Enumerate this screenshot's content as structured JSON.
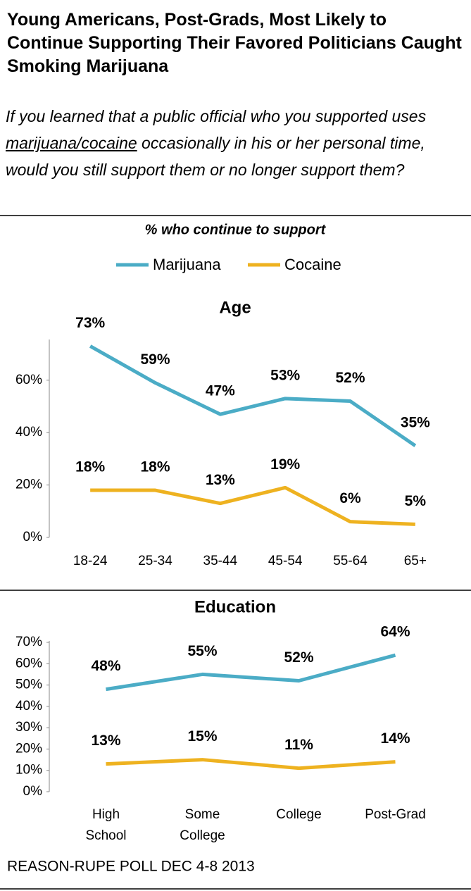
{
  "title": "Young Americans, Post-Grads, Most Likely to Continue Supporting Their Favored Politicians Caught Smoking Marijuana",
  "question": [
    "If you learned that a public official who you supported uses ",
    "marijuana/cocaine",
    " occasionally in his or her personal time, would you still support them or no longer support them?"
  ],
  "note": "% who continue to support",
  "source": "REASON-RUPE POLL DEC 4-8 2013",
  "chart_data": [
    {
      "type": "line",
      "title": "Age",
      "categories": [
        "18-24",
        "25-34",
        "35-44",
        "45-54",
        "55-64",
        "65+"
      ],
      "series": [
        {
          "name": "Marijuana",
          "color": "#4bacc6",
          "values": [
            73,
            59,
            47,
            53,
            52,
            35
          ],
          "value_labels": [
            "73%",
            "59%",
            "47%",
            "53%",
            "52%",
            "35%"
          ]
        },
        {
          "name": "Cocaine",
          "color": "#eeb220",
          "values": [
            18,
            18,
            13,
            19,
            6,
            5
          ],
          "value_labels": [
            "18%",
            "18%",
            "13%",
            "19%",
            "6%",
            "5%"
          ]
        }
      ],
      "ylim": [
        0,
        75
      ],
      "yticks": [
        {
          "value": 0,
          "label": "0%"
        },
        {
          "value": 20,
          "label": "20%"
        },
        {
          "value": 40,
          "label": "40%"
        },
        {
          "value": 60,
          "label": "60%"
        }
      ]
    },
    {
      "type": "line",
      "title": "Education",
      "categories": [
        "High School",
        "Some College",
        "College",
        "Post-Grad"
      ],
      "series": [
        {
          "color": "#4bacc6",
          "values": [
            48,
            55,
            52,
            64
          ],
          "value_labels": [
            "48%",
            "55%",
            "52%",
            "64%"
          ]
        },
        {
          "color": "#eeb220",
          "values": [
            13,
            15,
            11,
            14
          ],
          "value_labels": [
            "13%",
            "15%",
            "11%",
            "14%"
          ]
        }
      ],
      "ylim": [
        0,
        70
      ],
      "yticks": [
        {
          "value": 0,
          "label": "0%"
        },
        {
          "value": 10,
          "label": "10%"
        },
        {
          "value": 20,
          "label": "20%"
        },
        {
          "value": 30,
          "label": "30%"
        },
        {
          "value": 40,
          "label": "40%"
        },
        {
          "value": 50,
          "label": "50%"
        },
        {
          "value": 60,
          "label": "60%"
        },
        {
          "value": 70,
          "label": "70%"
        }
      ]
    }
  ]
}
